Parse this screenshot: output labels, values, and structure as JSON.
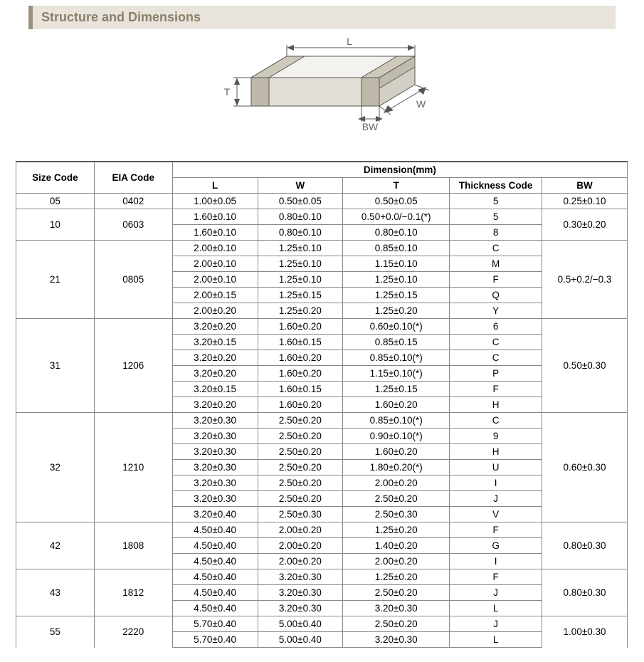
{
  "title": "Structure and Dimensions",
  "diagram": {
    "labels": {
      "L": "L",
      "W": "W",
      "T": "T",
      "BW": "BW"
    },
    "stroke": "#555555",
    "fill_top": "#f4f2ee",
    "fill_front": "#e3dfd7",
    "fill_side": "#d3cfc5",
    "fill_band": "#bfb9ab",
    "label_color": "#666666"
  },
  "table": {
    "header_top": "Dimension(mm)",
    "headers": {
      "size": "Size Code",
      "eia": "EIA Code",
      "L": "L",
      "W": "W",
      "T": "T",
      "Tc": "Thickness  Code",
      "BW": "BW"
    },
    "groups": [
      {
        "size": "05",
        "eia": "0402",
        "bw": "0.25±0.10",
        "rows": [
          {
            "L": "1.00±0.05",
            "W": "0.50±0.05",
            "T": "0.50±0.05",
            "Tc": "5"
          }
        ]
      },
      {
        "size": "10",
        "eia": "0603",
        "bw": "0.30±0.20",
        "rows": [
          {
            "L": "1.60±0.10",
            "W": "0.80±0.10",
            "T": "0.50+0.0/−0.1(*)",
            "Tc": "5"
          },
          {
            "L": "1.60±0.10",
            "W": "0.80±0.10",
            "T": "0.80±0.10",
            "Tc": "8"
          }
        ]
      },
      {
        "size": "21",
        "eia": "0805",
        "bw": "0.5+0.2/−0.3",
        "rows": [
          {
            "L": "2.00±0.10",
            "W": "1.25±0.10",
            "T": "0.85±0.10",
            "Tc": "C"
          },
          {
            "L": "2.00±0.10",
            "W": "1.25±0.10",
            "T": "1.15±0.10",
            "Tc": "M"
          },
          {
            "L": "2.00±0.10",
            "W": "1.25±0.10",
            "T": "1.25±0.10",
            "Tc": "F"
          },
          {
            "L": "2.00±0.15",
            "W": "1.25±0.15",
            "T": "1.25±0.15",
            "Tc": "Q"
          },
          {
            "L": "2.00±0.20",
            "W": "1.25±0.20",
            "T": "1.25±0.20",
            "Tc": "Y"
          }
        ]
      },
      {
        "size": "31",
        "eia": "1206",
        "bw": "0.50±0.30",
        "rows": [
          {
            "L": "3.20±0.20",
            "W": "1.60±0.20",
            "T": "0.60±0.10(*)",
            "Tc": "6"
          },
          {
            "L": "3.20±0.15",
            "W": "1.60±0.15",
            "T": "0.85±0.15",
            "Tc": "C"
          },
          {
            "L": "3.20±0.20",
            "W": "1.60±0.20",
            "T": "0.85±0.10(*)",
            "Tc": "C"
          },
          {
            "L": "3.20±0.20",
            "W": "1.60±0.20",
            "T": "1.15±0.10(*)",
            "Tc": "P"
          },
          {
            "L": "3.20±0.15",
            "W": "1.60±0.15",
            "T": "1.25±0.15",
            "Tc": "F"
          },
          {
            "L": "3.20±0.20",
            "W": "1.60±0.20",
            "T": "1.60±0.20",
            "Tc": "H"
          }
        ]
      },
      {
        "size": "32",
        "eia": "1210",
        "bw": "0.60±0.30",
        "rows": [
          {
            "L": "3.20±0.30",
            "W": "2.50±0.20",
            "T": "0.85±0.10(*)",
            "Tc": "C"
          },
          {
            "L": "3.20±0.30",
            "W": "2.50±0.20",
            "T": "0.90±0.10(*)",
            "Tc": "9"
          },
          {
            "L": "3.20±0.30",
            "W": "2.50±0.20",
            "T": "1.60±0.20",
            "Tc": "H"
          },
          {
            "L": "3.20±0.30",
            "W": "2.50±0.20",
            "T": "1.80±0.20(*)",
            "Tc": "U"
          },
          {
            "L": "3.20±0.30",
            "W": "2.50±0.20",
            "T": "2.00±0.20",
            "Tc": "I"
          },
          {
            "L": "3.20±0.30",
            "W": "2.50±0.20",
            "T": "2.50±0.20",
            "Tc": "J"
          },
          {
            "L": "3.20±0.40",
            "W": "2.50±0.30",
            "T": "2.50±0.30",
            "Tc": "V"
          }
        ]
      },
      {
        "size": "42",
        "eia": "1808",
        "bw": "0.80±0.30",
        "rows": [
          {
            "L": "4.50±0.40",
            "W": "2.00±0.20",
            "T": "1.25±0.20",
            "Tc": "F"
          },
          {
            "L": "4.50±0.40",
            "W": "2.00±0.20",
            "T": "1.40±0.20",
            "Tc": "G"
          },
          {
            "L": "4.50±0.40",
            "W": "2.00±0.20",
            "T": "2.00±0.20",
            "Tc": "I"
          }
        ]
      },
      {
        "size": "43",
        "eia": "1812",
        "bw": "0.80±0.30",
        "rows": [
          {
            "L": "4.50±0.40",
            "W": "3.20±0.30",
            "T": "1.25±0.20",
            "Tc": "F"
          },
          {
            "L": "4.50±0.40",
            "W": "3.20±0.30",
            "T": "2.50±0.20",
            "Tc": "J"
          },
          {
            "L": "4.50±0.40",
            "W": "3.20±0.30",
            "T": "3.20±0.30",
            "Tc": "L"
          }
        ]
      },
      {
        "size": "55",
        "eia": "2220",
        "bw": "1.00±0.30",
        "rows": [
          {
            "L": "5.70±0.40",
            "W": "5.00±0.40",
            "T": "2.50±0.20",
            "Tc": "J"
          },
          {
            "L": "5.70±0.40",
            "W": "5.00±0.40",
            "T": "3.20±0.30",
            "Tc": "L"
          }
        ]
      }
    ]
  },
  "colors": {
    "title_accent": "#9a8f7a",
    "title_bg": "#e8e4dc",
    "title_text": "#8a7f6a",
    "border": "#888888",
    "border_heavy": "#555555"
  },
  "fonts": {
    "family": "Arial, sans-serif",
    "body_pt": 13.5,
    "title_pt": 18
  }
}
